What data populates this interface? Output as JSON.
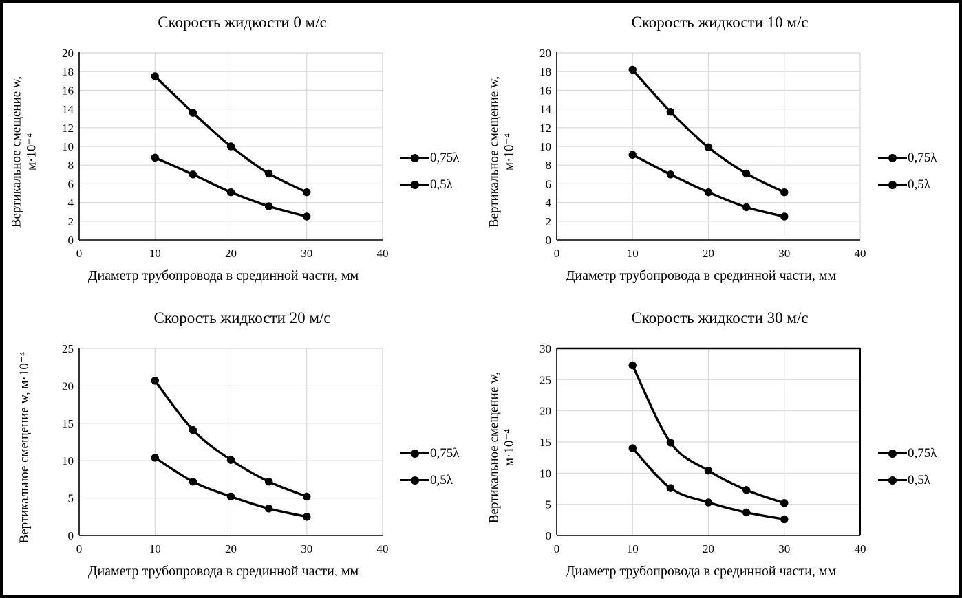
{
  "figure": {
    "background": "#ffffff",
    "frame_color": "#000000",
    "grid_color": "#d9d9d9",
    "axis_color": "#000000",
    "series_color": "#000000"
  },
  "chart_data": [
    {
      "type": "line",
      "title": "Скорость жидкости 0 м/с",
      "xlabel": "Диаметр трубопровода в срединной части, мм",
      "ylabel": "Вертикальное смещение w, м·10⁻⁴",
      "ylabel_lines": [
        "Вертикальное смещение w,",
        "м·10⁻⁴"
      ],
      "xlim": [
        0,
        40
      ],
      "ylim": [
        0,
        20
      ],
      "xticks": [
        0,
        10,
        20,
        30,
        40
      ],
      "yticks": [
        0,
        2,
        4,
        6,
        8,
        10,
        12,
        14,
        16,
        18,
        20
      ],
      "grid": true,
      "legend_position": "right",
      "plot_border": "#d9d9d9",
      "x": [
        10,
        15,
        20,
        25,
        30
      ],
      "series": [
        {
          "name": "0,75λ",
          "values": [
            17.5,
            13.6,
            10.0,
            7.1,
            5.1
          ]
        },
        {
          "name": "0,5λ",
          "values": [
            8.8,
            7.0,
            5.1,
            3.6,
            2.5
          ]
        }
      ]
    },
    {
      "type": "line",
      "title": "Скорость жидкости 10 м/с",
      "xlabel": "Диаметр трубопровода в срединной части, мм",
      "ylabel": "Вертикальное смещение w, м·10⁻⁴",
      "ylabel_lines": [
        "Вертикальное смещение w,",
        "м·10⁻⁴"
      ],
      "xlim": [
        0,
        40
      ],
      "ylim": [
        0,
        20
      ],
      "xticks": [
        0,
        10,
        20,
        30,
        40
      ],
      "yticks": [
        0,
        2,
        4,
        6,
        8,
        10,
        12,
        14,
        16,
        18,
        20
      ],
      "grid": true,
      "legend_position": "right",
      "plot_border": "#d9d9d9",
      "x": [
        10,
        15,
        20,
        25,
        30
      ],
      "series": [
        {
          "name": "0,75λ",
          "values": [
            18.2,
            13.7,
            9.9,
            7.1,
            5.1
          ]
        },
        {
          "name": "0,5λ",
          "values": [
            9.1,
            7.0,
            5.1,
            3.5,
            2.5
          ]
        }
      ]
    },
    {
      "type": "line",
      "title": "Скорость жидкости 20 м/с",
      "xlabel": "Диаметр трубопровода в срединной части, мм",
      "ylabel": "Вертикальное смещение w, м·10⁻⁴",
      "ylabel_lines": [
        "Вертикальное смещение w, м·10⁻⁴"
      ],
      "xlim": [
        0,
        40
      ],
      "ylim": [
        0,
        25
      ],
      "xticks": [
        0,
        10,
        20,
        30,
        40
      ],
      "yticks": [
        0,
        5,
        10,
        15,
        20,
        25
      ],
      "grid": true,
      "legend_position": "right",
      "plot_border": "#d9d9d9",
      "x": [
        10,
        15,
        20,
        25,
        30
      ],
      "series": [
        {
          "name": "0,75λ",
          "values": [
            20.7,
            14.1,
            10.1,
            7.2,
            5.2
          ]
        },
        {
          "name": "0,5λ",
          "values": [
            10.4,
            7.2,
            5.2,
            3.6,
            2.5
          ]
        }
      ]
    },
    {
      "type": "line",
      "title": "Скорость жидкости 30 м/с",
      "xlabel": "Диаметр трубопровода в срединной части, мм",
      "ylabel": "Вертикальное смещение w, м·10⁻⁴",
      "ylabel_lines": [
        "Вертикальное смещение w,",
        "м·10⁻⁴"
      ],
      "xlim": [
        0,
        40
      ],
      "ylim": [
        0,
        30
      ],
      "xticks": [
        0,
        10,
        20,
        30,
        40
      ],
      "yticks": [
        0,
        5,
        10,
        15,
        20,
        25,
        30
      ],
      "grid": true,
      "legend_position": "right",
      "plot_border": "#000000",
      "x": [
        10,
        15,
        20,
        25,
        30
      ],
      "series": [
        {
          "name": "0,75λ",
          "values": [
            27.3,
            14.9,
            10.4,
            7.3,
            5.2
          ]
        },
        {
          "name": "0,5λ",
          "values": [
            14.0,
            7.6,
            5.3,
            3.7,
            2.6
          ]
        }
      ]
    }
  ]
}
